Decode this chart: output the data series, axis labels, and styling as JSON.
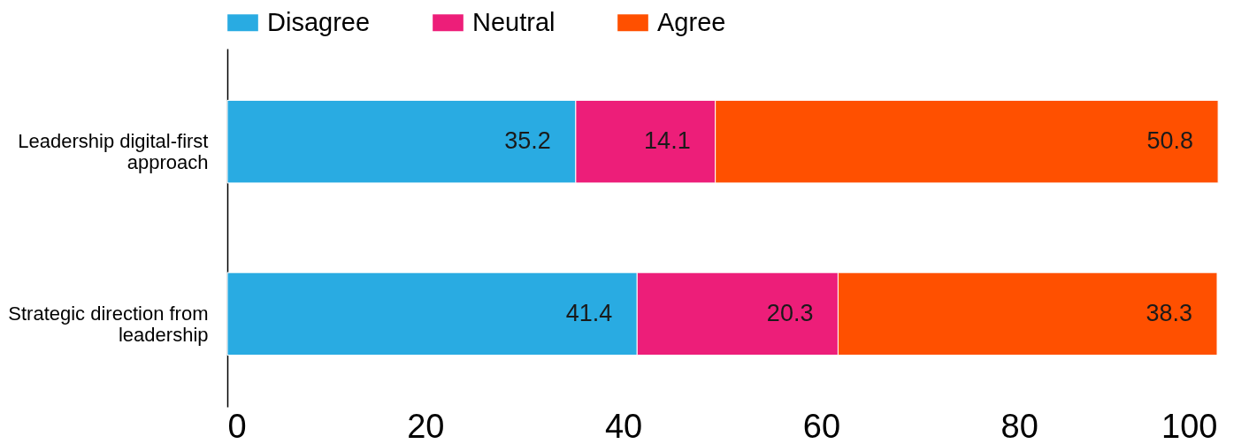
{
  "chart_data": {
    "type": "bar",
    "orientation": "horizontal",
    "stacked": true,
    "data_labels": true,
    "legend": "top",
    "grid": false,
    "categories": [
      "Leadership digital-first approach",
      "Strategic direction from leadership"
    ],
    "series": [
      {
        "name": "Disagree",
        "color": "#29abe2",
        "values": [
          35.2,
          41.4
        ]
      },
      {
        "name": "Neutral",
        "color": "#ed1e79",
        "values": [
          14.1,
          20.3
        ]
      },
      {
        "name": "Agree",
        "color": "#ff5000",
        "values": [
          50.8,
          38.3
        ]
      }
    ],
    "xlim": [
      0,
      100
    ],
    "xticks": [
      0,
      20,
      40,
      60,
      80,
      100
    ]
  }
}
